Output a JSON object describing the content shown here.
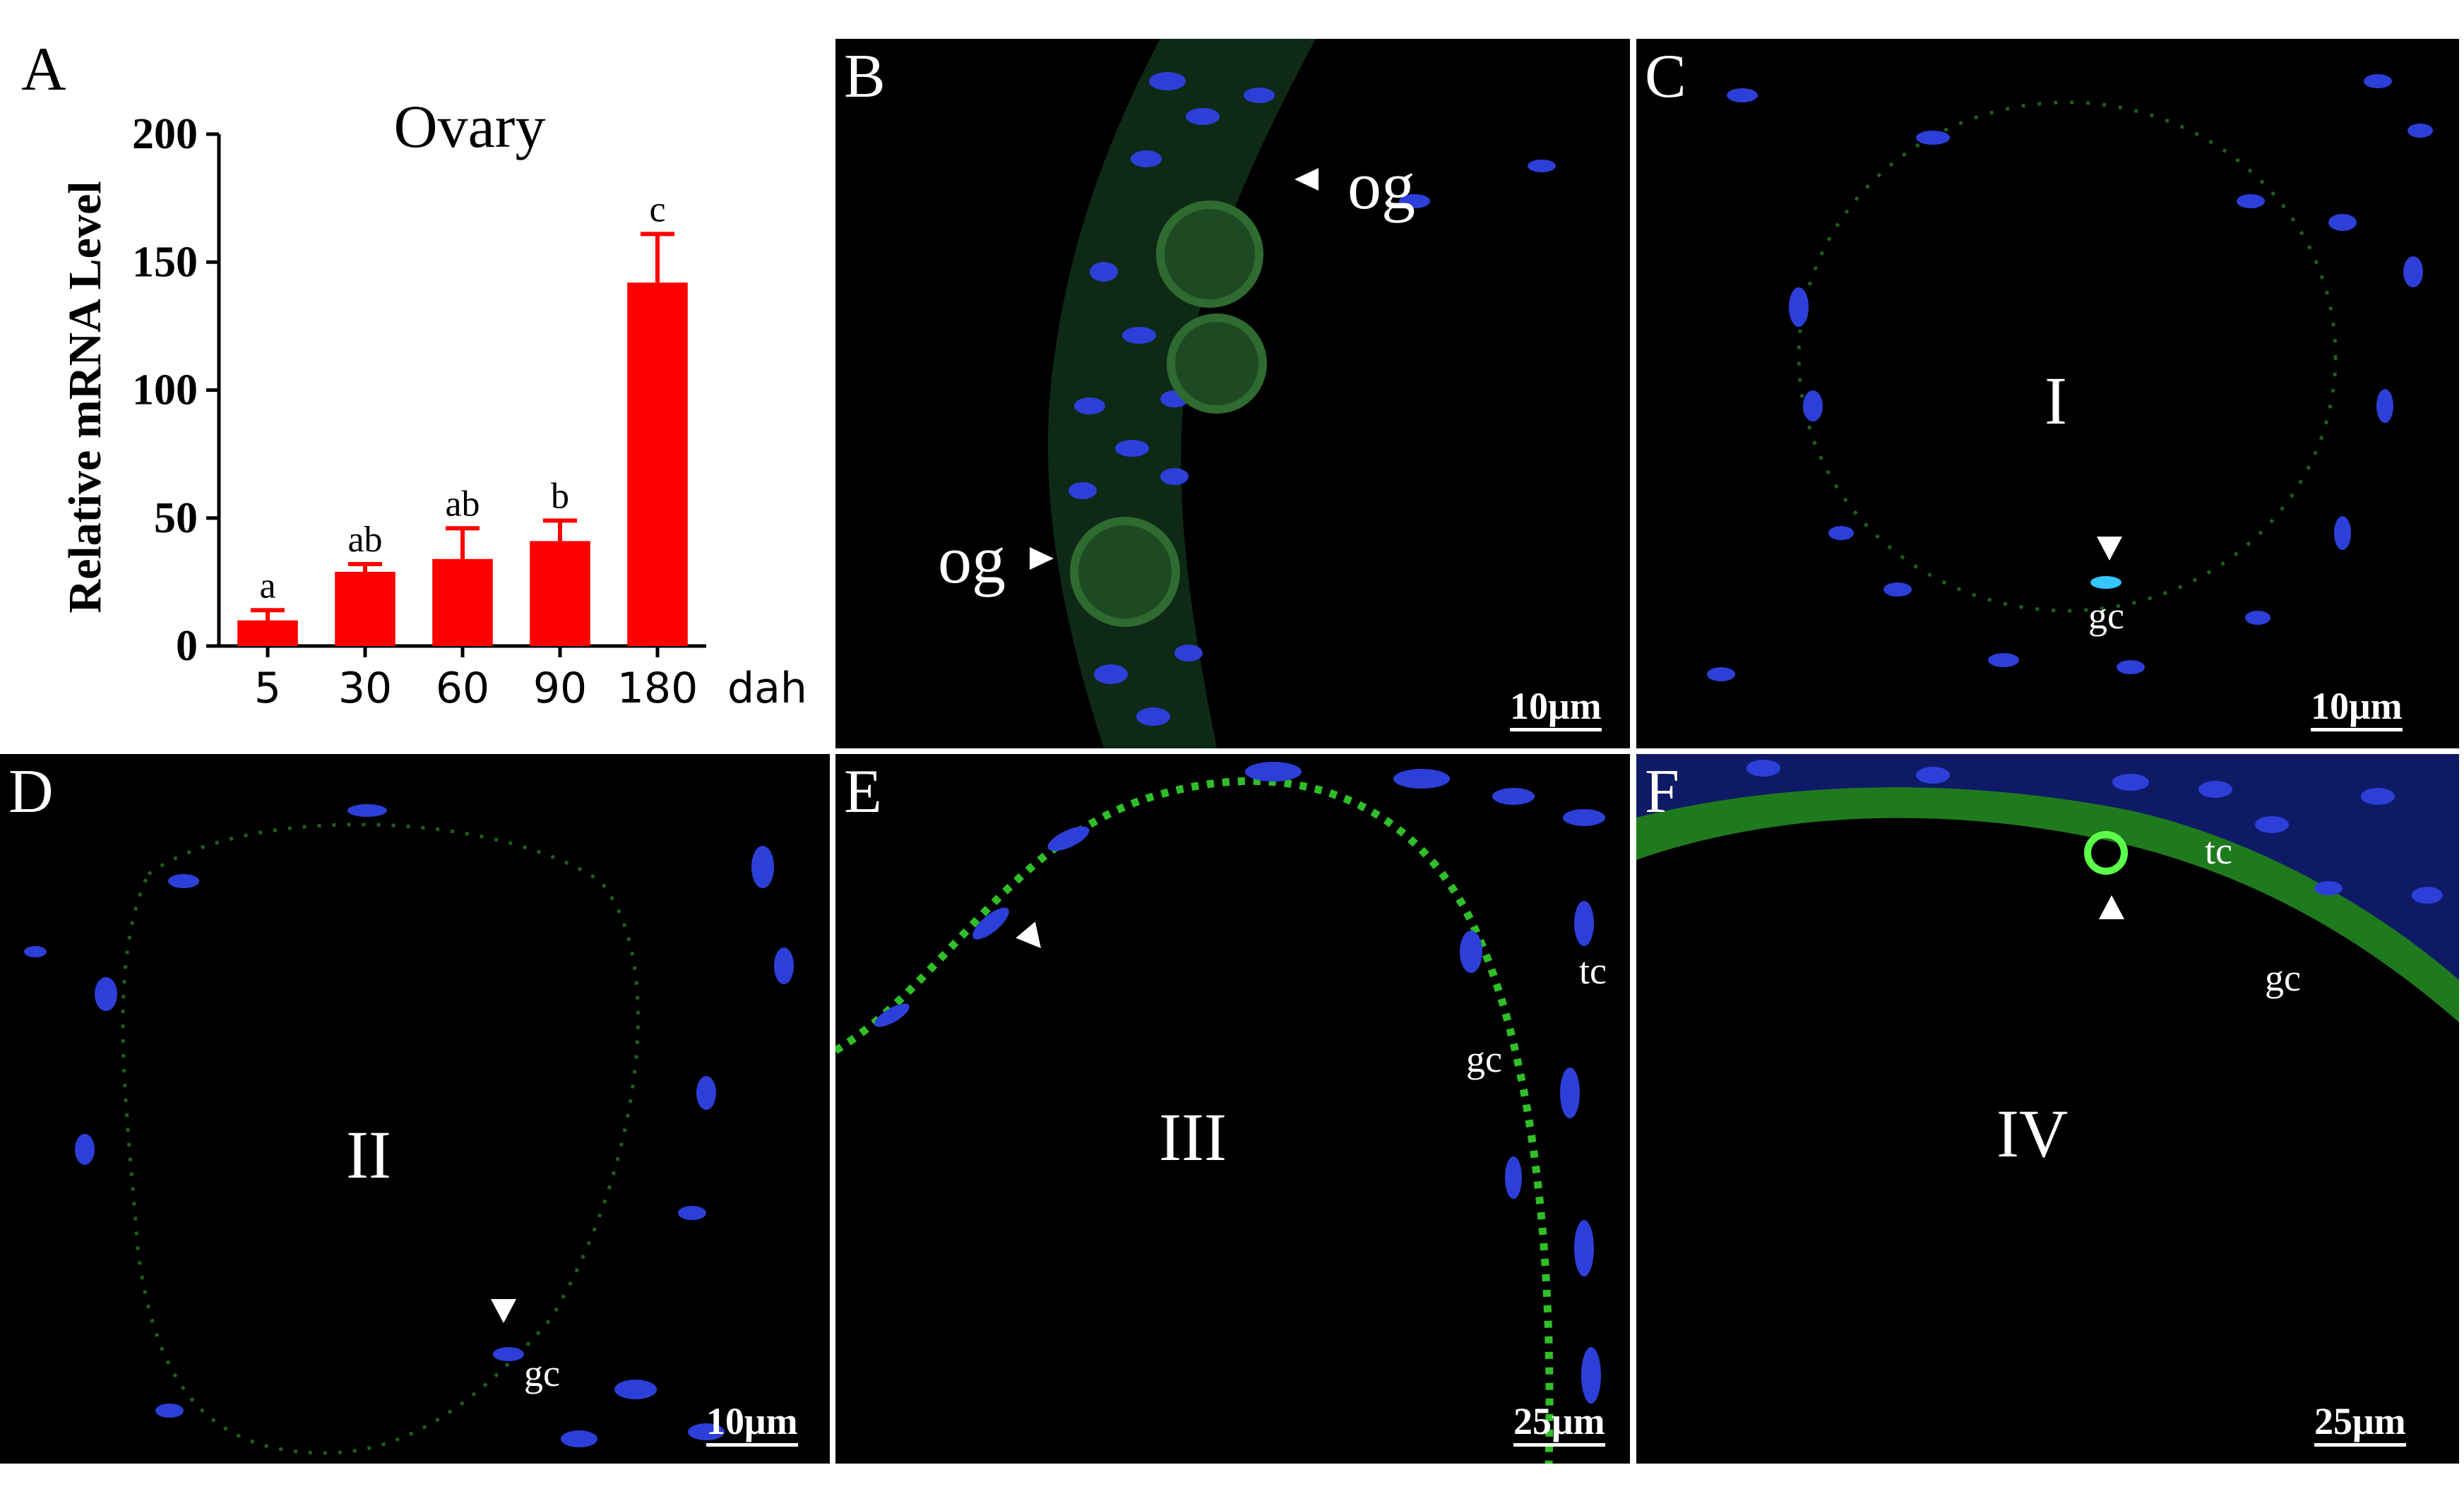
{
  "panels": {
    "A": {
      "letter": "A"
    },
    "B": {
      "letter": "B",
      "labels": [
        "og",
        "og"
      ],
      "scale": "10μm"
    },
    "C": {
      "letter": "C",
      "stage": "I",
      "cell": "gc",
      "scale": "10μm"
    },
    "D": {
      "letter": "D",
      "stage": "II",
      "cell": "gc",
      "scale": "10μm"
    },
    "E": {
      "letter": "E",
      "stage": "III",
      "cells": [
        "tc",
        "gc"
      ],
      "scale": "25μm"
    },
    "F": {
      "letter": "F",
      "stage": "IV",
      "cells": [
        "tc",
        "gc"
      ],
      "scale": "25μm"
    }
  },
  "colors": {
    "bar": "#ff0000",
    "nuclei": "#1a2cff",
    "signal": "#39d92c",
    "background": "#000000"
  },
  "chart_data": {
    "type": "bar",
    "title": "Ovary",
    "ylabel": "Relative mRNA Level",
    "xunit": "dah",
    "categories": [
      "5",
      "30",
      "60",
      "90",
      "180"
    ],
    "values": [
      10,
      29,
      34,
      41,
      142
    ],
    "errors": [
      4,
      3,
      12,
      8,
      19
    ],
    "significance": [
      "a",
      "ab",
      "ab",
      "b",
      "c"
    ],
    "ylim": [
      0,
      200
    ],
    "yticks": [
      0,
      50,
      100,
      150,
      200
    ],
    "grid": false,
    "legend": "none"
  }
}
